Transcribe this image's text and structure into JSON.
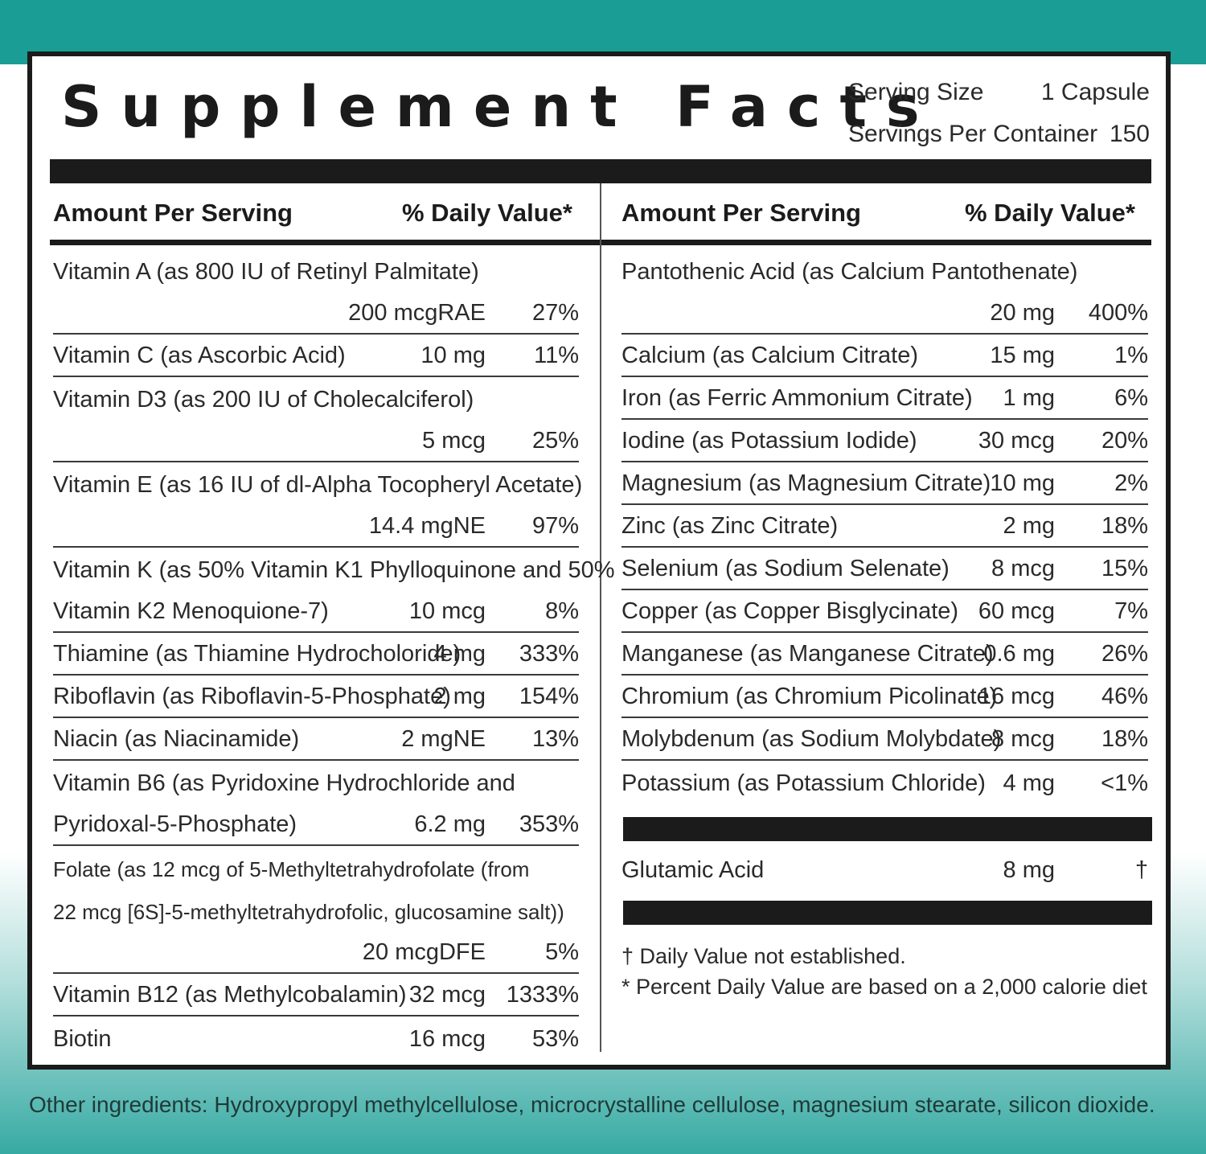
{
  "title": "Supplement Facts",
  "serving": {
    "size_label": "Serving Size",
    "size_value": "1 Capsule",
    "per_container_label": "Servings Per Container",
    "per_container_value": "150"
  },
  "headers": {
    "amount": "Amount Per Serving",
    "daily_value": "% Daily Value*"
  },
  "left_items": [
    {
      "name": "Vitamin A (as 800 IU of Retinyl Palmitate)",
      "amount": "200 mcgRAE",
      "dv": "27%"
    },
    {
      "name": "Vitamin C (as Ascorbic Acid)",
      "amount": "10 mg",
      "dv": "11%"
    },
    {
      "name": "Vitamin D3 (as 200 IU of Cholecalciferol)",
      "amount": "5 mcg",
      "dv": "25%"
    },
    {
      "name": "Vitamin E (as 16 IU of dl-Alpha Tocopheryl Acetate)",
      "amount": "14.4 mgNE",
      "dv": "97%"
    },
    {
      "name_line1": "Vitamin K (as 50% Vitamin K1 Phylloquinone and 50%",
      "name_line2": "Vitamin K2 Menoquione-7)",
      "amount": "10 mcg",
      "dv": "8%"
    },
    {
      "name": "Thiamine (as Thiamine Hydrocholoride)",
      "amount": "4 mg",
      "dv": "333%"
    },
    {
      "name": "Riboflavin (as Riboflavin-5-Phosphate)",
      "amount": "2 mg",
      "dv": "154%"
    },
    {
      "name": "Niacin (as Niacinamide)",
      "amount": "2 mgNE",
      "dv": "13%"
    },
    {
      "name_line1": "Vitamin B6 (as Pyridoxine Hydrochloride and",
      "name_line2": "Pyridoxal-5-Phosphate)",
      "amount": "6.2 mg",
      "dv": "353%"
    },
    {
      "name_line1": "Folate (as 12 mcg of 5-Methyltetrahydrofolate (from",
      "name_line2": "22 mcg [6S]-5-methyltetrahydrofolic, glucosamine salt))",
      "amount": "20 mcgDFE",
      "dv": "5%"
    },
    {
      "name": "Vitamin B12 (as Methylcobalamin)",
      "amount": "32 mcg",
      "dv": "1333%"
    },
    {
      "name": "Biotin",
      "amount": "16 mcg",
      "dv": "53%"
    }
  ],
  "right_items": [
    {
      "name": "Pantothenic Acid (as Calcium Pantothenate)",
      "amount": "20 mg",
      "dv": "400%"
    },
    {
      "name": "Calcium (as Calcium Citrate)",
      "amount": "15 mg",
      "dv": "1%"
    },
    {
      "name": "Iron (as Ferric Ammonium Citrate)",
      "amount": "1 mg",
      "dv": "6%"
    },
    {
      "name": "Iodine (as Potassium Iodide)",
      "amount": "30 mcg",
      "dv": "20%"
    },
    {
      "name": "Magnesium (as Magnesium Citrate)",
      "amount": "10 mg",
      "dv": "2%"
    },
    {
      "name": "Zinc (as Zinc Citrate)",
      "amount": "2 mg",
      "dv": "18%"
    },
    {
      "name": "Selenium (as Sodium Selenate)",
      "amount": "8 mcg",
      "dv": "15%"
    },
    {
      "name": "Copper (as Copper Bisglycinate)",
      "amount": "60 mcg",
      "dv": "7%"
    },
    {
      "name": "Manganese (as Manganese Citrate)",
      "amount": "0.6 mg",
      "dv": "26%"
    },
    {
      "name": "Chromium (as Chromium Picolinate)",
      "amount": "16 mcg",
      "dv": "46%"
    },
    {
      "name": "Molybdenum (as Sodium Molybdate)",
      "amount": "8 mcg",
      "dv": "18%"
    },
    {
      "name": "Potassium (as Potassium Chloride)",
      "amount": "4 mg",
      "dv": "<1%"
    }
  ],
  "other_item": {
    "name": "Glutamic Acid",
    "amount": "8 mg",
    "dv": "†"
  },
  "footnotes": {
    "dagger": "† Daily Value not established.",
    "star": "* Percent Daily Value are based on a 2,000 calorie diet"
  },
  "other_ingredients": "Other ingredients: Hydroxypropyl methylcellulose, microcrystalline cellulose, magnesium stearate, silicon dioxide."
}
